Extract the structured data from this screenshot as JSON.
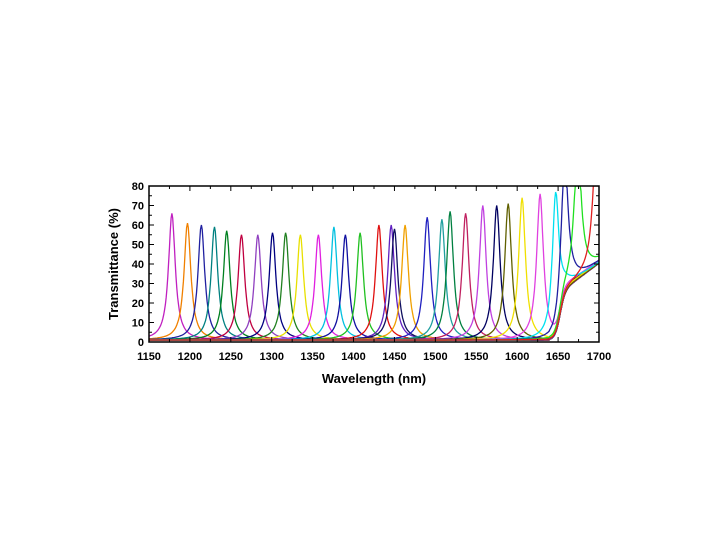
{
  "chart_data": {
    "type": "line",
    "title": "",
    "xlabel": "Wavelength (nm)",
    "ylabel": "Transmittance (%)",
    "xlim": [
      1150,
      1700
    ],
    "ylim": [
      0,
      80
    ],
    "xticks": [
      "1150",
      "1200",
      "1250",
      "1300",
      "1350",
      "1400",
      "1450",
      "1500",
      "1550",
      "1600",
      "1650",
      "1700"
    ],
    "yticks": [
      "0",
      "10",
      "20",
      "30",
      "40",
      "50",
      "60",
      "70",
      "80"
    ],
    "grid": false,
    "legend": "none",
    "peak_shape": "lorentzian",
    "peak_fwhm_nm": 10,
    "baseline_percent": 1,
    "cutoff_edge": {
      "start_nm": 1640,
      "end_nm": 1700,
      "plateau_percent": [
        25,
        40
      ]
    },
    "series": [
      {
        "color": "#c020c0",
        "peak_nm": 1178,
        "peak_percent": 66
      },
      {
        "color": "#f08000",
        "peak_nm": 1197,
        "peak_percent": 61
      },
      {
        "color": "#2020a0",
        "peak_nm": 1214,
        "peak_percent": 60
      },
      {
        "color": "#008080",
        "peak_nm": 1230,
        "peak_percent": 59
      },
      {
        "color": "#008020",
        "peak_nm": 1245,
        "peak_percent": 57
      },
      {
        "color": "#c00040",
        "peak_nm": 1263,
        "peak_percent": 55
      },
      {
        "color": "#9040c0",
        "peak_nm": 1283,
        "peak_percent": 55
      },
      {
        "color": "#000080",
        "peak_nm": 1301,
        "peak_percent": 56
      },
      {
        "color": "#208020",
        "peak_nm": 1317,
        "peak_percent": 56
      },
      {
        "color": "#e8e000",
        "peak_nm": 1335,
        "peak_percent": 55
      },
      {
        "color": "#e020e0",
        "peak_nm": 1357,
        "peak_percent": 55
      },
      {
        "color": "#00c0e0",
        "peak_nm": 1376,
        "peak_percent": 59
      },
      {
        "color": "#1010a0",
        "peak_nm": 1390,
        "peak_percent": 55
      },
      {
        "color": "#20c020",
        "peak_nm": 1408,
        "peak_percent": 56
      },
      {
        "color": "#e01010",
        "peak_nm": 1431,
        "peak_percent": 60
      },
      {
        "color": "#6020c0",
        "peak_nm": 1446,
        "peak_percent": 60
      },
      {
        "color": "#101060",
        "peak_nm": 1450,
        "peak_percent": 58
      },
      {
        "color": "#f0a000",
        "peak_nm": 1463,
        "peak_percent": 60
      },
      {
        "color": "#2020c0",
        "peak_nm": 1490,
        "peak_percent": 64
      },
      {
        "color": "#20a0a0",
        "peak_nm": 1508,
        "peak_percent": 63
      },
      {
        "color": "#008040",
        "peak_nm": 1518,
        "peak_percent": 67
      },
      {
        "color": "#c02060",
        "peak_nm": 1537,
        "peak_percent": 66
      },
      {
        "color": "#c040e0",
        "peak_nm": 1558,
        "peak_percent": 70
      },
      {
        "color": "#000060",
        "peak_nm": 1575,
        "peak_percent": 70
      },
      {
        "color": "#606000",
        "peak_nm": 1589,
        "peak_percent": 71
      },
      {
        "color": "#f0e000",
        "peak_nm": 1606,
        "peak_percent": 74
      },
      {
        "color": "#e040e0",
        "peak_nm": 1628,
        "peak_percent": 76
      },
      {
        "color": "#00e0f0",
        "peak_nm": 1647,
        "peak_percent": 73
      },
      {
        "color": "#2020a0",
        "peak_nm": 1658,
        "peak_percent": 71
      },
      {
        "color": "#20e020",
        "peak_nm": 1674,
        "peak_percent": 71
      },
      {
        "color": "#e02020",
        "peak_nm": 1697,
        "peak_percent": 70
      }
    ]
  }
}
